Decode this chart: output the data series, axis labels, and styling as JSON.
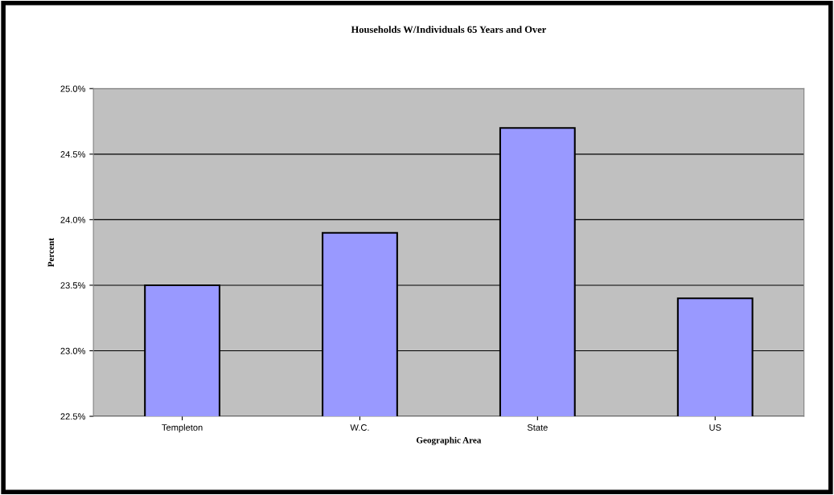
{
  "chart_data": {
    "type": "bar",
    "title": "Households W/Individuals 65 Years and Over",
    "xlabel": "Geographic Area",
    "ylabel": "Percent",
    "categories": [
      "Templeton",
      "W.C.",
      "State",
      "US"
    ],
    "values": [
      23.5,
      23.9,
      24.7,
      23.4
    ],
    "color": "#9999ff",
    "ylim": [
      22.5,
      25.0
    ],
    "yticks": [
      {
        "value": 22.5,
        "label": "22.5%"
      },
      {
        "value": 23.0,
        "label": "23.0%"
      },
      {
        "value": 23.5,
        "label": "23.5%"
      },
      {
        "value": 24.0,
        "label": "24.0%"
      },
      {
        "value": 24.5,
        "label": "24.5%"
      },
      {
        "value": 25.0,
        "label": "25.0%"
      }
    ],
    "grid": "y",
    "legend": false
  }
}
